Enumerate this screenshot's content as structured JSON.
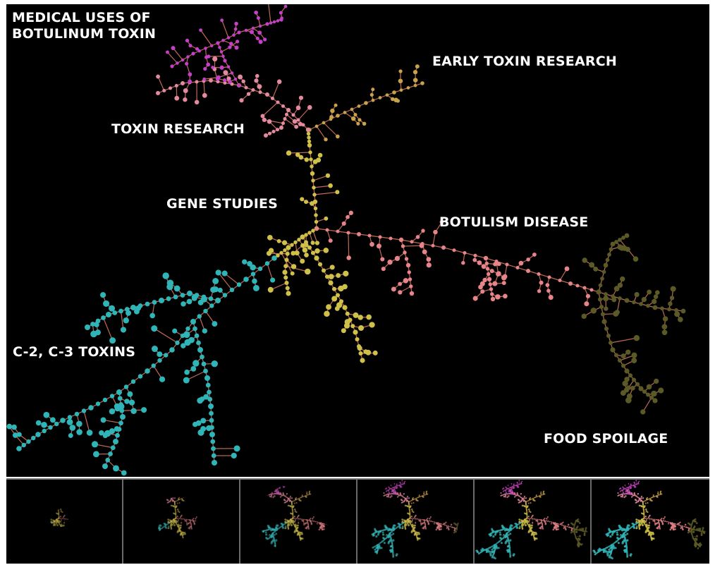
{
  "labels": {
    "medical": "MEDICAL USES OF\nBOTULINUM TOXIN",
    "early": "EARLY TOXIN RESEARCH",
    "toxin": "TOXIN RESEARCH",
    "gene": "GENE STUDIES",
    "botulism": "BOTULISM DISEASE",
    "c2c3": "C-2, C-3 TOXINS",
    "food": "FOOD SPOILAGE"
  },
  "colors": {
    "background": "#000000",
    "edge": "#c06a55",
    "medical": "#c63fc9",
    "toxin": "#e48aa0",
    "early": "#c8a24a",
    "gene": "#cfc04a",
    "botulism": "#e6848a",
    "food": "#5b5a26",
    "c2c3": "#2fb5b8",
    "timeline_border": "#6a6a6a"
  },
  "timeline": {
    "frames": [
      {
        "name": "timeline-frame-1",
        "growth": 0.12
      },
      {
        "name": "timeline-frame-2",
        "growth": 0.28
      },
      {
        "name": "timeline-frame-3",
        "growth": 0.45
      },
      {
        "name": "timeline-frame-4",
        "growth": 0.65
      },
      {
        "name": "timeline-frame-5",
        "growth": 0.82
      },
      {
        "name": "timeline-frame-6",
        "growth": 1.0
      }
    ]
  }
}
